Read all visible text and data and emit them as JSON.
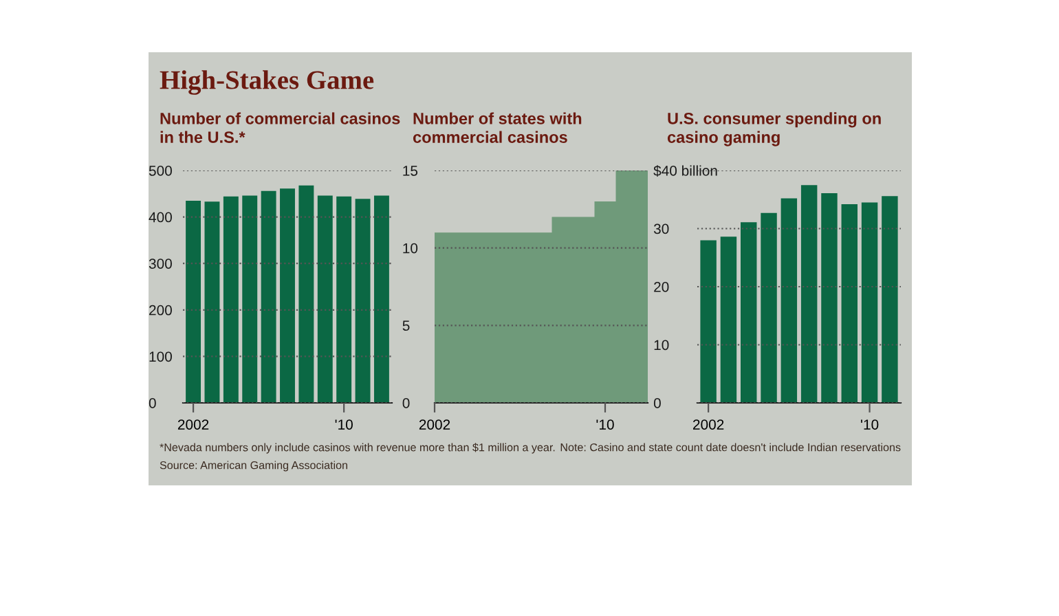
{
  "chart_data": [
    {
      "type": "other",
      "title": "High-Stakes Game",
      "annotations": [
        "*Nevada numbers only include casinos with revenue more than $1 million a year.",
        "Source: American Gaming Association",
        "Note: Casino and state count date doesn't include Indian reservations"
      ]
    },
    {
      "type": "bar",
      "title": "Number of commercial casinos in the U.S.*",
      "categories": [
        "2002",
        null,
        null,
        null,
        null,
        null,
        null,
        null,
        "'10",
        null,
        null
      ],
      "values": [
        435,
        433,
        444,
        446,
        456,
        461,
        468,
        446,
        444,
        439,
        446
      ],
      "color": "#0b6844",
      "ylim": [
        0,
        500
      ],
      "yticks": [
        0,
        100,
        200,
        300,
        400,
        500
      ],
      "grid": "y"
    },
    {
      "type": "area",
      "title": "Number of states with commercial casinos",
      "categories": [
        "2002",
        null,
        null,
        null,
        null,
        null,
        null,
        null,
        "'10",
        null,
        null
      ],
      "values": [
        11,
        11,
        11,
        11,
        11,
        11,
        12,
        12,
        13,
        15,
        15
      ],
      "color": "#6f9a7a",
      "ylim": [
        0,
        15
      ],
      "yticks": [
        0,
        5,
        10,
        15
      ],
      "grid": "y"
    },
    {
      "type": "bar",
      "title": "U.S. consumer spending on casino gaming",
      "categories": [
        "2002",
        null,
        null,
        null,
        null,
        null,
        null,
        null,
        "'10",
        null
      ],
      "values": [
        28.0,
        28.6,
        31.1,
        32.7,
        35.2,
        37.5,
        36.1,
        34.2,
        34.5,
        35.6
      ],
      "color": "#0b6844",
      "ylim": [
        0,
        40
      ],
      "yticks": [
        0,
        10,
        20,
        30,
        {
          "value": 40,
          "label": "$40 billion"
        }
      ],
      "grid": "y"
    }
  ]
}
